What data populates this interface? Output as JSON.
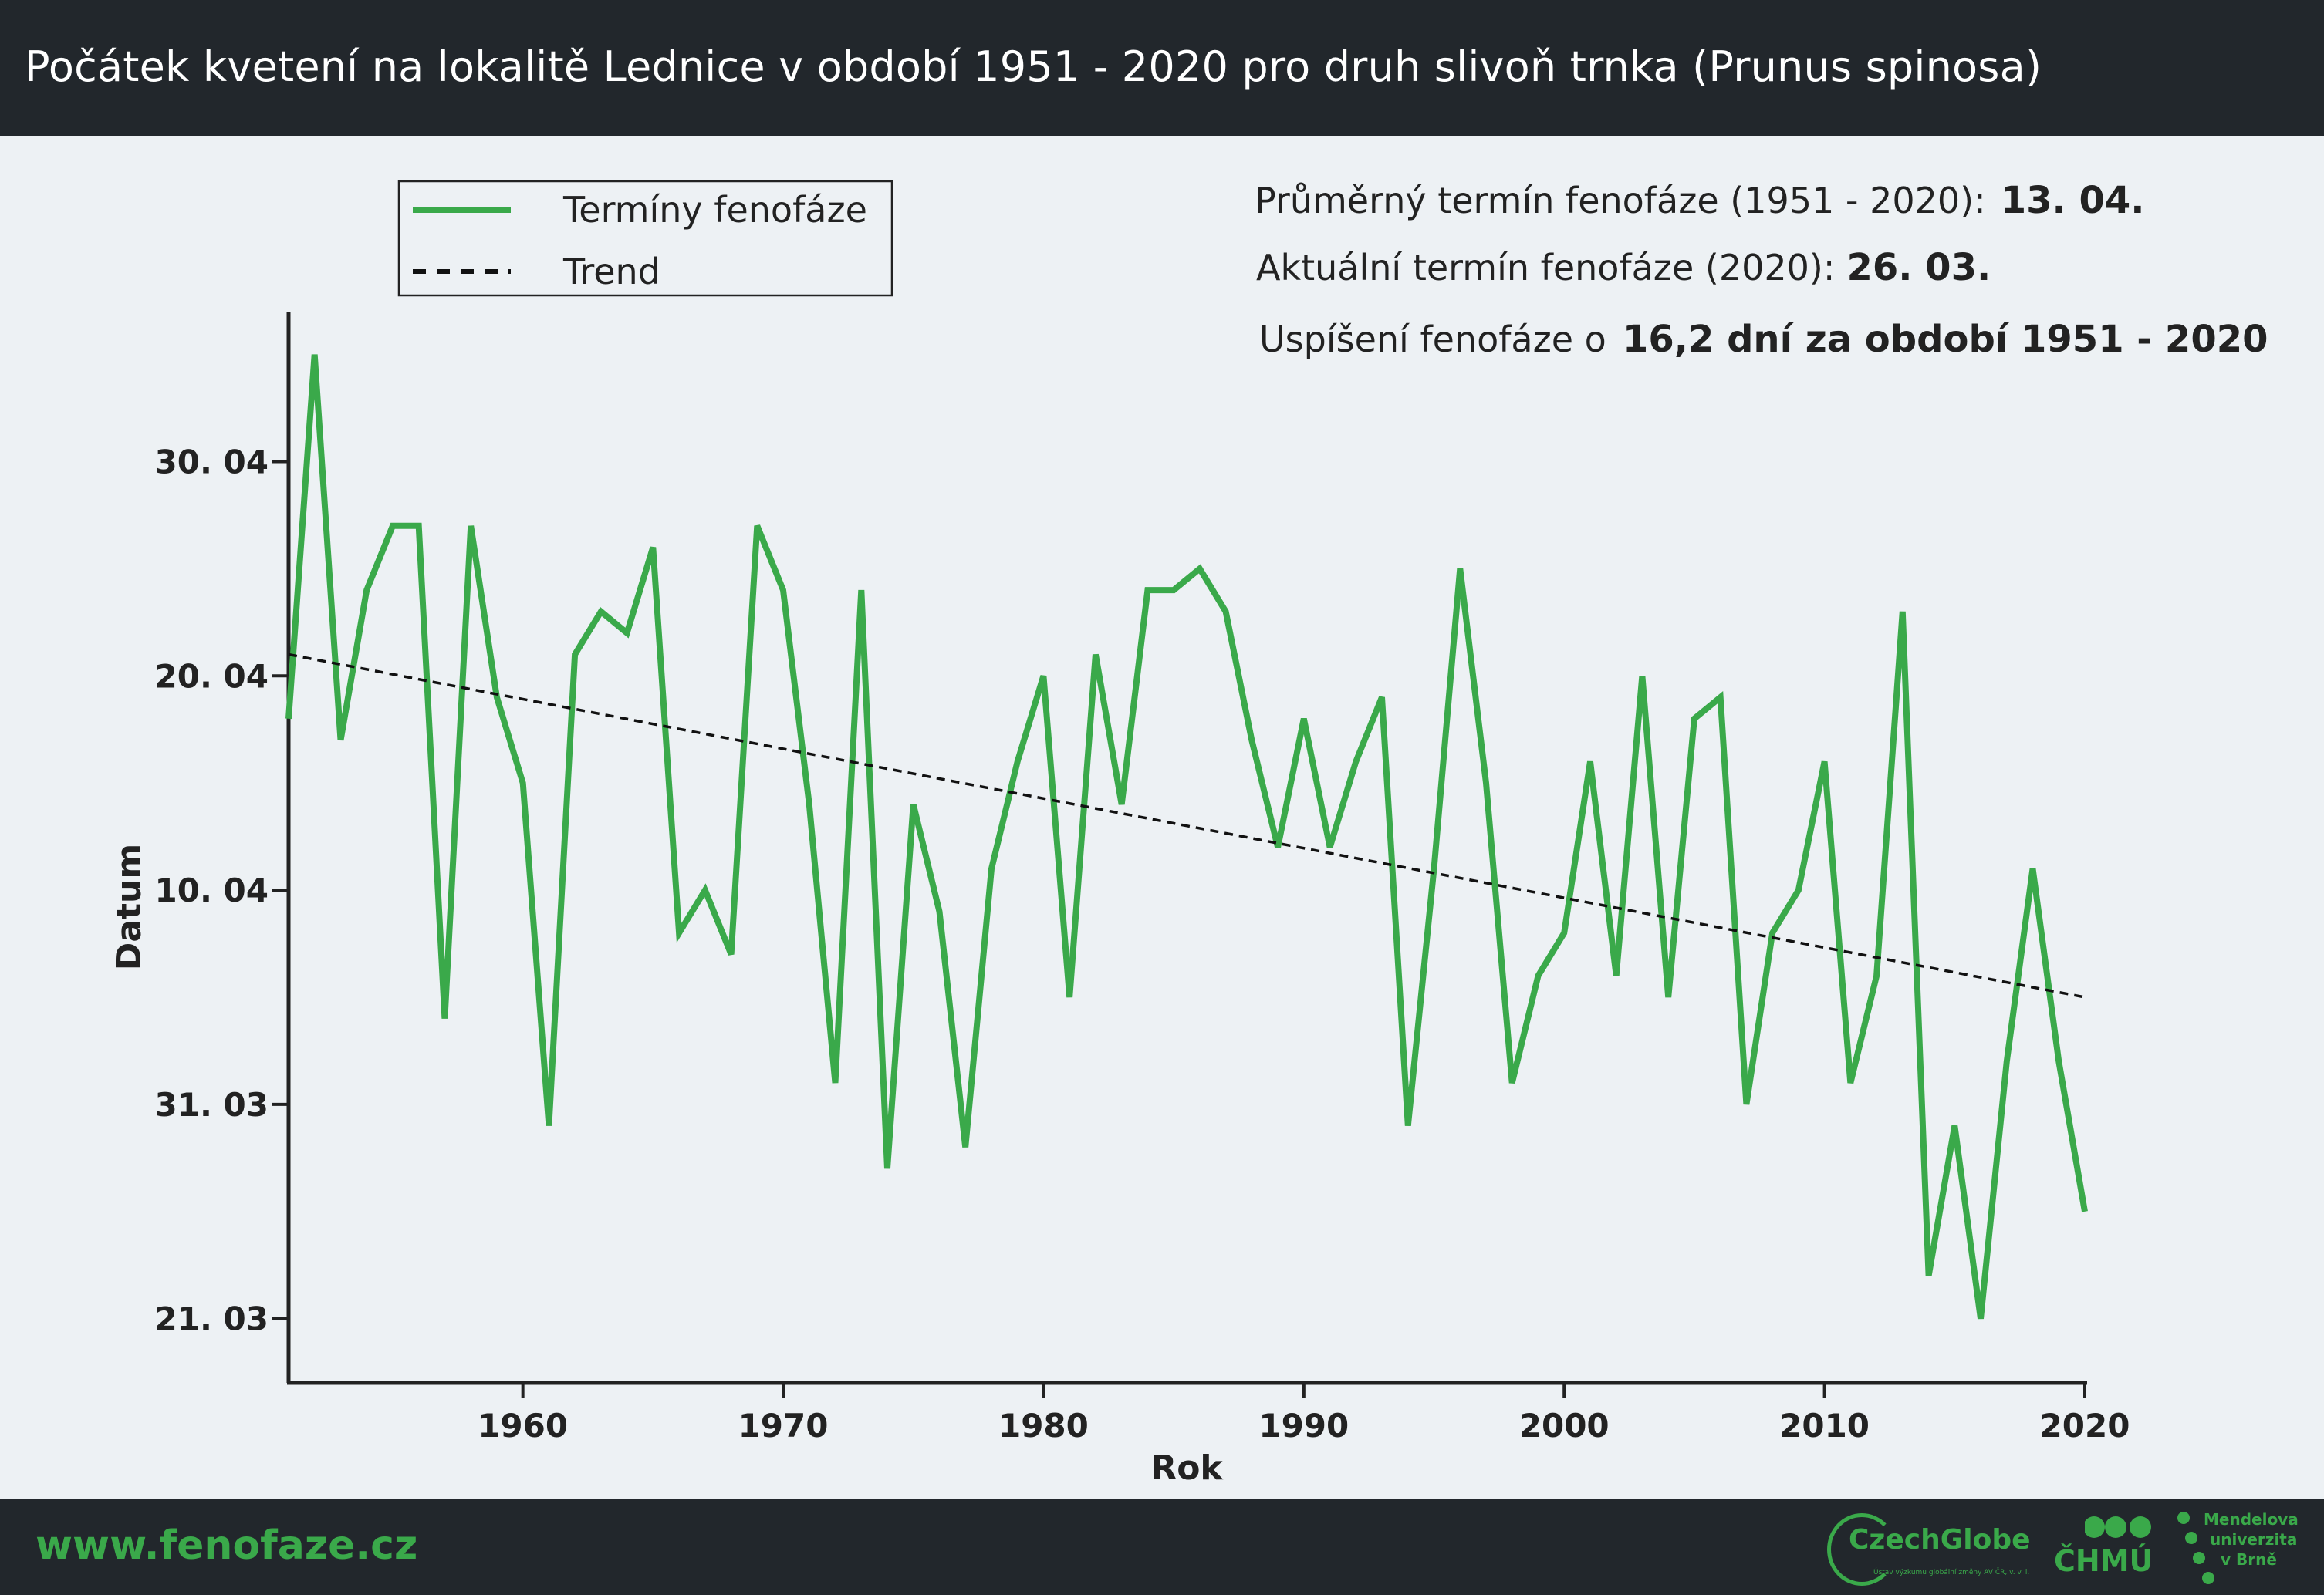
{
  "header": {
    "title": "Počátek kvetení na lokalitě Lednice v období 1951 - 2020 pro druh slivoň trnka (Prunus spinosa)"
  },
  "info": {
    "mean_label": "Průměrný termín fenofáze (1951 - 2020):",
    "mean_value": "13. 04.",
    "current_label": "Aktuální termín fenofáze (2020):",
    "current_value": "26. 03.",
    "shift_label": "Uspíšení fenofáze o",
    "shift_value": "16,2 dní za období 1951 - 2020"
  },
  "legend": {
    "series_label": "Termíny fenofáze",
    "trend_label": "Trend"
  },
  "footer": {
    "url": "www.fenofaze.cz",
    "logo_czechglobe": "CzechGlobe",
    "logo_czechglobe_sub": "Ústav výzkumu globální změny AV ČR, v. v. i.",
    "logo_chmu": "ČHMÚ",
    "logo_mendel_1": "Mendelova",
    "logo_mendel_2": "univerzita",
    "logo_mendel_3": "v Brně"
  },
  "colors": {
    "series": "#3aa94a",
    "trend": "#111111",
    "header_bg": "#22272c",
    "plot_bg": "#edf1f4",
    "accent": "#3aa94a"
  },
  "chart_data": {
    "type": "line",
    "title": "",
    "xlabel": "Rok",
    "ylabel": "Datum",
    "xlim": [
      1951,
      2020
    ],
    "ylim": [
      "2020-03-18",
      "2020-05-07"
    ],
    "xticks": [
      1960,
      1970,
      1980,
      1990,
      2000,
      2010,
      2020
    ],
    "yticks": [
      "2020-03-21",
      "2020-03-31",
      "2020-04-10",
      "2020-04-20",
      "2020-04-30"
    ],
    "ytick_labels": [
      "21. 03",
      "31. 03",
      "10. 04",
      "20. 04",
      "30. 04"
    ],
    "grid": false,
    "legend_position": "top-left",
    "x": [
      1951,
      1952,
      1953,
      1954,
      1955,
      1956,
      1957,
      1958,
      1959,
      1960,
      1961,
      1962,
      1963,
      1964,
      1965,
      1966,
      1967,
      1968,
      1969,
      1970,
      1971,
      1972,
      1973,
      1974,
      1975,
      1976,
      1977,
      1978,
      1979,
      1980,
      1981,
      1982,
      1983,
      1984,
      1985,
      1986,
      1987,
      1988,
      1989,
      1990,
      1991,
      1992,
      1993,
      1994,
      1995,
      1996,
      1997,
      1998,
      1999,
      2000,
      2001,
      2002,
      2003,
      2004,
      2005,
      2006,
      2007,
      2008,
      2009,
      2010,
      2011,
      2012,
      2013,
      2014,
      2015,
      2016,
      2017,
      2018,
      2019,
      2020
    ],
    "series": [
      {
        "name": "Termíny fenofáze",
        "values": [
          "2020-04-18",
          "2020-05-05",
          "2020-04-17",
          "2020-04-24",
          "2020-04-27",
          "2020-04-27",
          "2020-04-04",
          "2020-04-27",
          "2020-04-19",
          "2020-04-15",
          "2020-03-30",
          "2020-04-21",
          "2020-04-23",
          "2020-04-22",
          "2020-04-26",
          "2020-04-08",
          "2020-04-10",
          "2020-04-07",
          "2020-04-27",
          "2020-04-24",
          "2020-04-14",
          "2020-04-01",
          "2020-04-24",
          "2020-03-28",
          "2020-04-14",
          "2020-04-09",
          "2020-03-29",
          "2020-04-11",
          "2020-04-16",
          "2020-04-20",
          "2020-04-05",
          "2020-04-21",
          "2020-04-14",
          "2020-04-24",
          "2020-04-24",
          "2020-04-25",
          "2020-04-23",
          "2020-04-17",
          "2020-04-12",
          "2020-04-18",
          "2020-04-12",
          "2020-04-16",
          "2020-04-19",
          "2020-03-30",
          "2020-04-11",
          "2020-04-25",
          "2020-04-15",
          "2020-04-01",
          "2020-04-06",
          "2020-04-08",
          "2020-04-16",
          "2020-04-06",
          "2020-04-20",
          "2020-04-05",
          "2020-04-18",
          "2020-04-19",
          "2020-03-31",
          "2020-04-08",
          "2020-04-10",
          "2020-04-16",
          "2020-04-01",
          "2020-04-06",
          "2020-04-23",
          "2020-03-23",
          "2020-03-30",
          "2020-03-21",
          "2020-04-02",
          "2020-04-11",
          "2020-04-02",
          "2020-03-26"
        ]
      }
    ],
    "trend": {
      "name": "Trend",
      "x": [
        1951,
        2020
      ],
      "values": [
        "2020-04-21",
        "2020-04-05"
      ]
    }
  }
}
